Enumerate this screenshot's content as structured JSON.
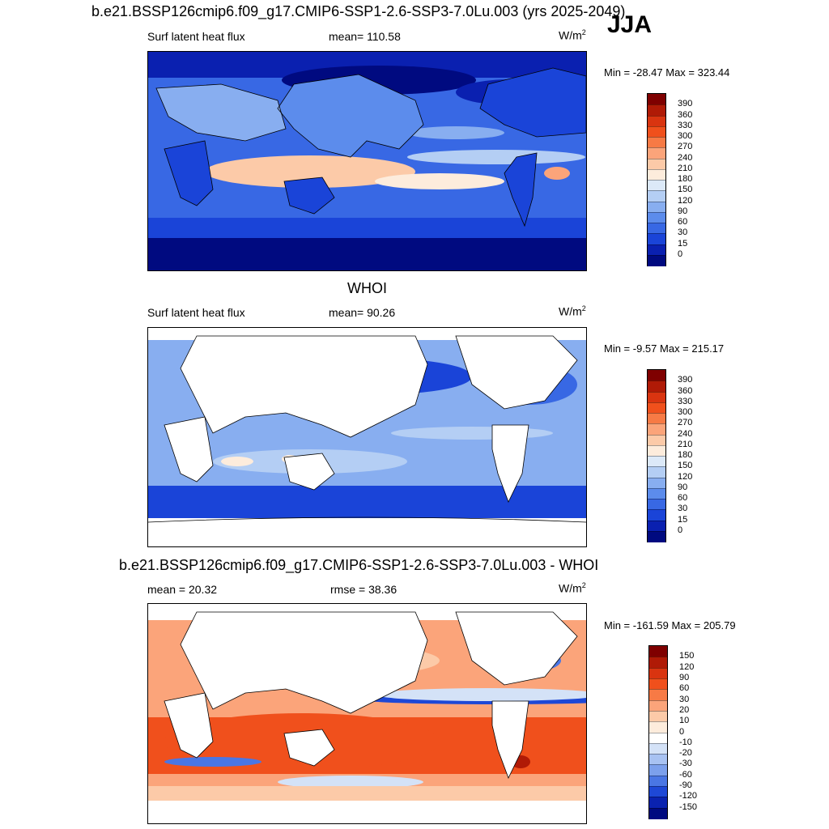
{
  "figure": {
    "title": "b.e21.BSSP126cmip6.f09_g17.CMIP6-SSP1-2.6-SSP3-7.0Lu.003 (yrs 2025-2049)",
    "season": "JJA"
  },
  "panels": [
    {
      "id": "model",
      "header": "",
      "variable": "Surf latent heat flux",
      "stat": "mean= 110.58",
      "units": "W/m",
      "units_sup": "2",
      "minmax": "Min = -28.47 Max = 323.44",
      "palette": "warm",
      "levels": [
        "390",
        "360",
        "330",
        "300",
        "270",
        "240",
        "210",
        "180",
        "150",
        "120",
        "90",
        "60",
        "30",
        "15",
        "0"
      ],
      "colors": [
        "#7f0000",
        "#b01a06",
        "#d93410",
        "#f0501c",
        "#f77a45",
        "#fba47a",
        "#fccaa8",
        "#fdecdc",
        "#dce9f8",
        "#b4cef4",
        "#88aef0",
        "#5c8cec",
        "#3868e4",
        "#1a44d8",
        "#0a20b0",
        "#000a80"
      ]
    },
    {
      "id": "obs",
      "header": "WHOI",
      "variable": "Surf latent heat flux",
      "stat": "mean=  90.26",
      "units": "W/m",
      "units_sup": "2",
      "minmax": "Min =  -9.57 Max = 215.17",
      "palette": "warm",
      "levels": [
        "390",
        "360",
        "330",
        "300",
        "270",
        "240",
        "210",
        "180",
        "150",
        "120",
        "90",
        "60",
        "30",
        "15",
        "0"
      ],
      "colors": [
        "#7f0000",
        "#b01a06",
        "#d93410",
        "#f0501c",
        "#f77a45",
        "#fba47a",
        "#fccaa8",
        "#fdecdc",
        "#dce9f8",
        "#b4cef4",
        "#88aef0",
        "#5c8cec",
        "#3868e4",
        "#1a44d8",
        "#0a20b0",
        "#000a80"
      ]
    },
    {
      "id": "diff",
      "header": "b.e21.BSSP126cmip6.f09_g17.CMIP6-SSP1-2.6-SSP3-7.0Lu.003 - WHOI",
      "variable": "mean =  20.32",
      "stat": "rmse =  38.36",
      "units": "W/m",
      "units_sup": "2",
      "minmax": "Min = -161.59 Max = 205.79",
      "palette": "diff",
      "levels": [
        "150",
        "120",
        "90",
        "60",
        "30",
        "20",
        "10",
        "0",
        "-10",
        "-20",
        "-30",
        "-60",
        "-90",
        "-120",
        "-150"
      ],
      "colors": [
        "#7f0000",
        "#b01a06",
        "#d93410",
        "#f0501c",
        "#f77a45",
        "#fba47a",
        "#fccaa8",
        "#fdecdc",
        "#ffffff",
        "#d4e2f7",
        "#a8c2f2",
        "#7ca0ec",
        "#4a76e4",
        "#1e48d6",
        "#0a22b0",
        "#000a80"
      ]
    }
  ]
}
